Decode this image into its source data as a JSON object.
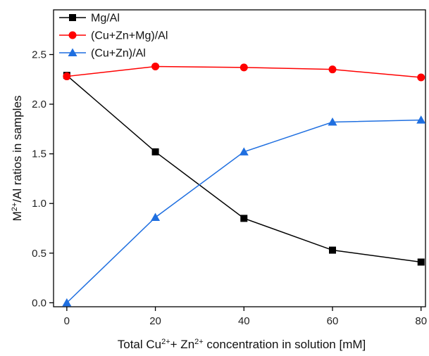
{
  "chart_data": {
    "type": "line",
    "x": [
      0,
      20,
      40,
      60,
      80
    ],
    "series": [
      {
        "name": "Mg/Al",
        "color": "#000000",
        "marker": "square",
        "values": [
          2.29,
          1.52,
          0.85,
          0.53,
          0.41
        ]
      },
      {
        "name": "(Cu+Zn+Mg)/Al",
        "color": "#ff0000",
        "marker": "circle",
        "values": [
          2.28,
          2.38,
          2.37,
          2.35,
          2.27
        ]
      },
      {
        "name": "(Cu+Zn)/Al",
        "color": "#1f6fe0",
        "marker": "triangle",
        "values": [
          0.0,
          0.86,
          1.52,
          1.82,
          1.84
        ]
      }
    ],
    "xlabel": {
      "parts": [
        {
          "text": "Total Cu"
        },
        {
          "text": "2+",
          "sup": true
        },
        {
          "text": "+ Zn"
        },
        {
          "text": "2+",
          "sup": true
        },
        {
          "text": " concentration in solution [mM]"
        }
      ]
    },
    "ylabel": {
      "parts": [
        {
          "text": "M"
        },
        {
          "text": "2+",
          "sup": true
        },
        {
          "text": "/Al ratios in samples"
        }
      ]
    },
    "xticks": [
      0,
      20,
      40,
      60,
      80
    ],
    "xtick_labels": [
      "0",
      "20",
      "40",
      "60",
      "80"
    ],
    "yticks": [
      0.0,
      0.5,
      1.0,
      1.5,
      2.0,
      2.5
    ],
    "ytick_labels": [
      "0.0",
      "0.5",
      "1.0",
      "1.5",
      "2.0",
      "2.5"
    ],
    "xlim": [
      -3,
      81
    ],
    "ylim": [
      -0.04,
      2.95
    ],
    "legend_position": "top-left",
    "grid": false
  }
}
